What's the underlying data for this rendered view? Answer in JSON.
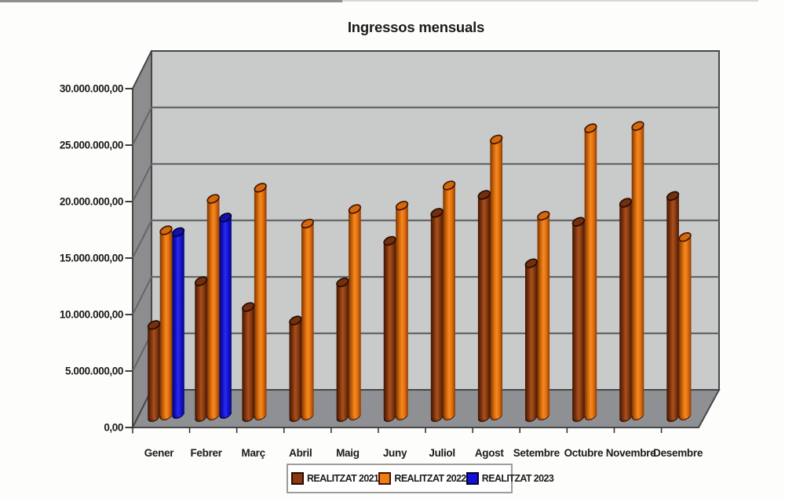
{
  "chart_data": {
    "type": "bar",
    "subtype": "3d-cylinder-clustered",
    "title": "Ingressos mensuals",
    "categories": [
      "Gener",
      "Febrer",
      "Març",
      "Abril",
      "Maig",
      "Juny",
      "Juliol",
      "Agost",
      "Setembre",
      "Octubre",
      "Novembre",
      "Desembre"
    ],
    "series": [
      {
        "name": "REALITZAT 2021",
        "values": [
          8300000,
          12200000,
          9900000,
          8700000,
          12100000,
          15800000,
          18300000,
          19900000,
          13800000,
          17500000,
          19200000,
          19800000
        ],
        "colors": {
          "body": [
            "#3f1502",
            "#7c330d",
            "#a8511e",
            "#8a3a0e",
            "#481803"
          ],
          "top": "#73300e",
          "rim": "#260b01",
          "legend": "#8a3a10"
        }
      },
      {
        "name": "REALITZAT 2022",
        "values": [
          16600000,
          19400000,
          20400000,
          17200000,
          18500000,
          18800000,
          20600000,
          24700000,
          17900000,
          25700000,
          25900000,
          16000000
        ],
        "colors": {
          "body": [
            "#7a3305",
            "#cc6609",
            "#f8881f",
            "#e27110",
            "#8c3d05"
          ],
          "top": "#d06a0d",
          "rim": "#451301",
          "legend": "#ef7d15"
        }
      },
      {
        "name": "REALITZAT 2023",
        "values": [
          16300000,
          17600000,
          null,
          null,
          null,
          null,
          null,
          null,
          null,
          null,
          null,
          null
        ],
        "colors": {
          "body": [
            "#04046c",
            "#1212c4",
            "#2b2bf2",
            "#1313ce",
            "#08087c"
          ],
          "top": "#1111b0",
          "rim": "#03032c",
          "legend": "#1111d8"
        }
      }
    ],
    "ylim": [
      0,
      30000000
    ],
    "ytick_step": 5000000,
    "ytick_labels": [
      "0,00",
      "5.000.000,00",
      "10.000.000,00",
      "15.000.000,00",
      "20.000.000,00",
      "25.000.000,00",
      "30.000.000,00"
    ],
    "grid": true,
    "legend_position": "bottom-center",
    "wall_color": "#c9caca",
    "side_wall_color": "#8d8d8f",
    "floor_color": "#8f9093",
    "gridline_color": "#656668",
    "frame_color": "#47474a"
  }
}
